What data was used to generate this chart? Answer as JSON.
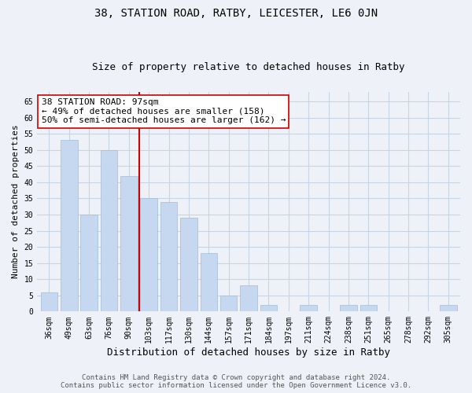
{
  "title": "38, STATION ROAD, RATBY, LEICESTER, LE6 0JN",
  "subtitle": "Size of property relative to detached houses in Ratby",
  "xlabel": "Distribution of detached houses by size in Ratby",
  "ylabel": "Number of detached properties",
  "categories": [
    "36sqm",
    "49sqm",
    "63sqm",
    "76sqm",
    "90sqm",
    "103sqm",
    "117sqm",
    "130sqm",
    "144sqm",
    "157sqm",
    "171sqm",
    "184sqm",
    "197sqm",
    "211sqm",
    "224sqm",
    "238sqm",
    "251sqm",
    "265sqm",
    "278sqm",
    "292sqm",
    "305sqm"
  ],
  "values": [
    6,
    53,
    30,
    50,
    42,
    35,
    34,
    29,
    18,
    5,
    8,
    2,
    0,
    2,
    0,
    2,
    2,
    0,
    0,
    0,
    2
  ],
  "bar_color": "#c5d8f0",
  "bar_edge_color": "#a0bcd8",
  "vline_x": 4.5,
  "vline_color": "#cc0000",
  "annotation_text": "38 STATION ROAD: 97sqm\n← 49% of detached houses are smaller (158)\n50% of semi-detached houses are larger (162) →",
  "annotation_box_color": "#ffffff",
  "annotation_box_edge": "#cc0000",
  "ylim": [
    0,
    68
  ],
  "yticks": [
    0,
    5,
    10,
    15,
    20,
    25,
    30,
    35,
    40,
    45,
    50,
    55,
    60,
    65
  ],
  "footer_line1": "Contains HM Land Registry data © Crown copyright and database right 2024.",
  "footer_line2": "Contains public sector information licensed under the Open Government Licence v3.0.",
  "bg_color": "#eef2f8",
  "grid_color": "#c8d4e4",
  "title_fontsize": 10,
  "subtitle_fontsize": 9,
  "xlabel_fontsize": 9,
  "ylabel_fontsize": 8,
  "tick_fontsize": 7,
  "footer_fontsize": 6.5,
  "annotation_fontsize": 8
}
